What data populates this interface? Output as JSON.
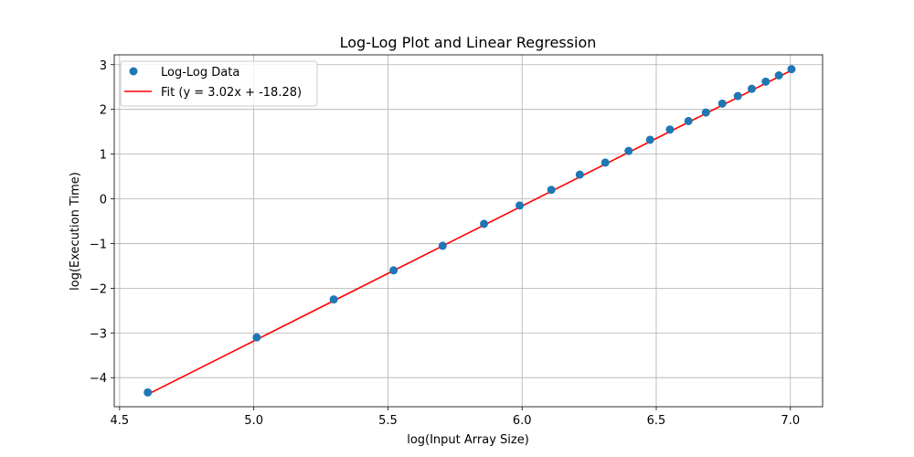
{
  "chart_data": {
    "type": "scatter",
    "title": "Log-Log Plot and Linear Regression",
    "xlabel": "log(Input Array Size)",
    "ylabel": "log(Execution Time)",
    "xlim": [
      4.48,
      7.12
    ],
    "ylim": [
      -4.65,
      3.22
    ],
    "xticks": [
      4.5,
      5.0,
      5.5,
      6.0,
      6.5,
      7.0
    ],
    "xtick_labels": [
      "4.5",
      "5.0",
      "5.5",
      "6.0",
      "6.5",
      "7.0"
    ],
    "yticks": [
      -4,
      -3,
      -2,
      -1,
      0,
      1,
      2,
      3
    ],
    "ytick_labels": [
      "−4",
      "−3",
      "−2",
      "−1",
      "0",
      "1",
      "2",
      "3"
    ],
    "grid": true,
    "legend_position": "top-left",
    "series": [
      {
        "name": "Log-Log Data",
        "kind": "scatter",
        "color": "#1f77b4",
        "x": [
          4.605,
          5.011,
          5.298,
          5.521,
          5.704,
          5.858,
          5.991,
          6.109,
          6.215,
          6.31,
          6.397,
          6.477,
          6.551,
          6.62,
          6.685,
          6.746,
          6.804,
          6.856,
          6.908,
          6.957,
          7.004
        ],
        "y": [
          -4.33,
          -3.1,
          -2.25,
          -1.6,
          -1.05,
          -0.56,
          -0.15,
          0.2,
          0.54,
          0.81,
          1.07,
          1.32,
          1.55,
          1.74,
          1.93,
          2.13,
          2.3,
          2.46,
          2.62,
          2.76,
          2.9
        ]
      },
      {
        "name": "Fit (y = 3.02x + -18.28)",
        "kind": "line",
        "color": "#ff0000",
        "slope": 3.02,
        "intercept": -18.28,
        "x_range": [
          4.605,
          7.004
        ]
      }
    ]
  }
}
